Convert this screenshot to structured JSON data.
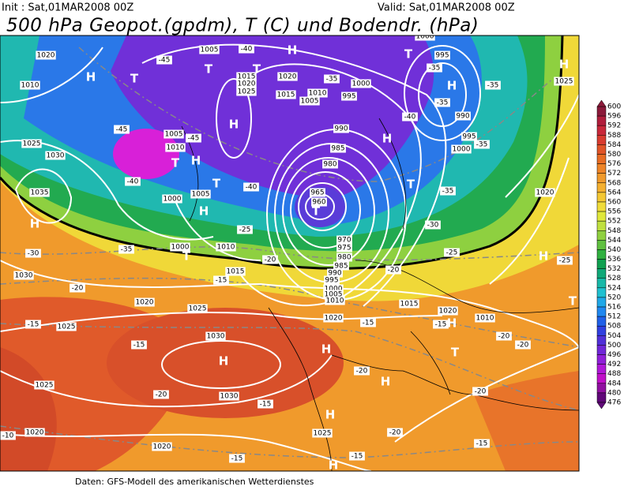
{
  "header": {
    "init": "Init : Sat,01MAR2008 00Z",
    "valid": "Valid: Sat,01MAR2008 00Z",
    "title": "500 hPa Geopot.(gpdm), T (C) und Bodendr. (hPa)"
  },
  "footer": "Daten: GFS-Modell des amerikanischen Wetterdienstes",
  "colorbar": {
    "levels": [
      600,
      596,
      592,
      588,
      584,
      580,
      576,
      572,
      568,
      564,
      560,
      556,
      552,
      548,
      544,
      540,
      536,
      532,
      528,
      524,
      520,
      516,
      512,
      508,
      504,
      500,
      496,
      492,
      488,
      484,
      480,
      476
    ],
    "colors": [
      "#8b1a3a",
      "#b01e3c",
      "#c8283a",
      "#d83c30",
      "#e05428",
      "#e86c24",
      "#ee8428",
      "#f09a2c",
      "#f4b030",
      "#f4c834",
      "#f0dc3a",
      "#e0e83c",
      "#c0e040",
      "#90d040",
      "#60c040",
      "#30b040",
      "#10a050",
      "#10a878",
      "#18b8a8",
      "#20c0d0",
      "#20a8e8",
      "#2088f0",
      "#2060e8",
      "#3040e0",
      "#5030d8",
      "#7028d8",
      "#9020d8",
      "#b018d8",
      "#c010c8",
      "#9010a0",
      "#600878"
    ]
  },
  "map_labels": {
    "isobars": [
      "1020",
      "1010",
      "1025",
      "1030",
      "1035",
      "1005",
      "1015",
      "1020",
      "1025",
      "1020",
      "1015",
      "1010",
      "1005",
      "1000",
      "995",
      "990",
      "985",
      "980",
      "965",
      "960",
      "970",
      "975",
      "980",
      "985",
      "990",
      "995",
      "1000",
      "1005",
      "1010",
      "1005",
      "1010",
      "1000",
      "1005",
      "1000",
      "1010",
      "1015",
      "1020",
      "1025",
      "1020",
      "1030",
      "1030",
      "1025",
      "1030",
      "1025",
      "1020",
      "1020",
      "1025",
      "1015",
      "1020",
      "1010",
      "1000",
      "995",
      "990",
      "995",
      "1000",
      "1020",
      "1025"
    ],
    "temperatures": [
      "-45",
      "-45",
      "-45",
      "-40",
      "-40",
      "-35",
      "-40",
      "-35",
      "-35",
      "-40",
      "-35",
      "-35",
      "-35",
      "-30",
      "-25",
      "-25",
      "-30",
      "-35",
      "-20",
      "-20",
      "-15",
      "-20",
      "-15",
      "-15",
      "-15",
      "-20",
      "-15",
      "-20",
      "-20",
      "-20",
      "-20",
      "-15",
      "-20",
      "-15",
      "-15",
      "-15",
      "-10",
      "-25"
    ],
    "centers": [
      "H",
      "T",
      "H",
      "T",
      "H",
      "T",
      "H",
      "T",
      "T",
      "H",
      "H",
      "T",
      "T",
      "H",
      "H",
      "T",
      "H",
      "T",
      "H",
      "T",
      "H",
      "T",
      "H",
      "H",
      "H",
      "H",
      "H"
    ]
  }
}
